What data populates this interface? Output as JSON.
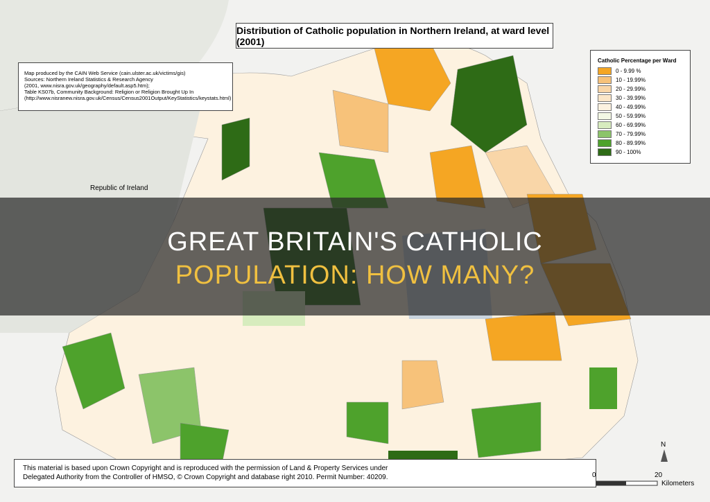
{
  "map_title": "Distribution of Catholic population in Northern Ireland, at ward level (2001)",
  "credits": [
    "Map produced by the CAIN Web Service (cain.ulster.ac.uk/victims/gis)",
    "Sources: Northern Ireland Statistics & Research Agency",
    "(2001, www.nisra.gov.uk/geography/default.asp5.htm);",
    "Table KS07b, Community Background: Religion or Religion Brought Up In",
    "(http://www.nisranew.nisra.gov.uk/Census/Census2001Output/KeyStatistics/keystats.html)"
  ],
  "legend": {
    "title": "Catholic Percentage per Ward",
    "items": [
      {
        "label": "0 - 9.99 %",
        "color": "#f5a623"
      },
      {
        "label": "10 - 19.99%",
        "color": "#f7c27a"
      },
      {
        "label": "20 - 29.99%",
        "color": "#f9d6a8"
      },
      {
        "label": "30 - 39.99%",
        "color": "#fbe6c8"
      },
      {
        "label": "40 - 49.99%",
        "color": "#fdf2e0"
      },
      {
        "label": "50 - 59.99%",
        "color": "#f3f8e4"
      },
      {
        "label": "60 - 69.99%",
        "color": "#d7ecbe"
      },
      {
        "label": "70 - 79.99%",
        "color": "#8cc46a"
      },
      {
        "label": "80 - 89.99%",
        "color": "#4ea22c"
      },
      {
        "label": "90 - 100%",
        "color": "#2e6b16"
      }
    ]
  },
  "region_label": "Republic of Ireland",
  "copyright": [
    "This material is based upon Crown Copyright and is reproduced with the permission of Land & Property Services under",
    "Delegated Authority from the Controller of HMSO, © Crown Copyright and database right 2010. Permit Number: 40209."
  ],
  "scale": {
    "start": "0",
    "end": "20",
    "unit": "Kilometers",
    "north": "N"
  },
  "banner": {
    "line1": "GREAT BRITAIN'S CATHOLIC",
    "line2": "POPULATION: HOW MANY?"
  }
}
